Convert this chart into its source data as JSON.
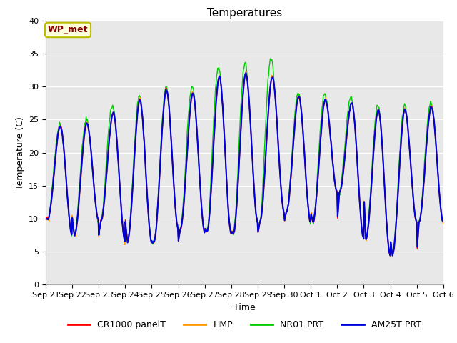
{
  "title": "Temperatures",
  "xlabel": "Time",
  "ylabel": "Temperature (C)",
  "ylim": [
    0,
    40
  ],
  "bg_color": "#e8e8e8",
  "annotation_text": "WP_met",
  "annotation_color": "#8b0000",
  "annotation_bg": "#ffffdd",
  "annotation_border": "#bbbb00",
  "series": {
    "CR1000 panelT": {
      "color": "#ff0000",
      "zorder": 4,
      "lw": 1.0
    },
    "HMP": {
      "color": "#ff9900",
      "zorder": 3,
      "lw": 1.0
    },
    "NR01 PRT": {
      "color": "#00cc00",
      "zorder": 2,
      "lw": 1.0
    },
    "AM25T PRT": {
      "color": "#0000dd",
      "zorder": 5,
      "lw": 1.5
    }
  },
  "x_tick_labels": [
    "Sep 21",
    "Sep 22",
    "Sep 23",
    "Sep 24",
    "Sep 25",
    "Sep 26",
    "Sep 27",
    "Sep 28",
    "Sep 29",
    "Sep 30",
    "Oct 1",
    "Oct 2",
    "Oct 3",
    "Oct 4",
    "Oct 5",
    "Oct 6"
  ],
  "peaks": [
    24.0,
    24.5,
    26.0,
    28.0,
    29.5,
    29.0,
    31.5,
    32.0,
    31.5,
    28.5,
    28.0,
    27.5,
    26.5,
    26.5,
    27.0
  ],
  "troughs": [
    10.0,
    7.5,
    9.7,
    6.5,
    6.5,
    8.5,
    8.0,
    7.8,
    9.5,
    11.0,
    9.5,
    14.0,
    7.0,
    4.5,
    9.5
  ],
  "nro1_extra_peaks": [
    1.0,
    1.5,
    2.5,
    1.5,
    1.0,
    2.5,
    3.5,
    3.5,
    5.5,
    1.5,
    2.0,
    2.0,
    1.5,
    1.5,
    1.5
  ],
  "hmp_peak_offset": [
    -0.5,
    -0.8,
    -0.5,
    -0.5,
    -0.5,
    -0.5,
    -0.5,
    -0.5,
    -0.5,
    -0.5,
    -0.5,
    -0.5,
    -0.5,
    -0.5,
    -0.5
  ],
  "font_family": "DejaVu Sans",
  "title_fontsize": 11,
  "axis_fontsize": 9,
  "tick_fontsize": 8,
  "legend_fontsize": 9
}
